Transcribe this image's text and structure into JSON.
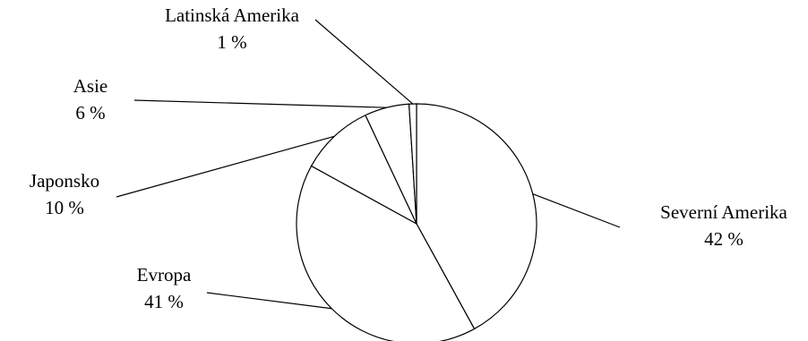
{
  "chart_data": {
    "type": "pie",
    "slices": [
      {
        "label": "Severní Amerika",
        "value": 42,
        "value_label": "42 %"
      },
      {
        "label": "Evropa",
        "value": 41,
        "value_label": "41 %"
      },
      {
        "label": "Japonsko",
        "value": 10,
        "value_label": "10 %"
      },
      {
        "label": "Asie",
        "value": 6,
        "value_label": "6 %"
      },
      {
        "label": "Latinská Amerika",
        "value": 1,
        "value_label": "1 %"
      }
    ],
    "start_angle_deg": 0,
    "direction": "clockwise",
    "slice_fill": "#ffffff",
    "stroke_color": "#000000",
    "legend": "none"
  }
}
